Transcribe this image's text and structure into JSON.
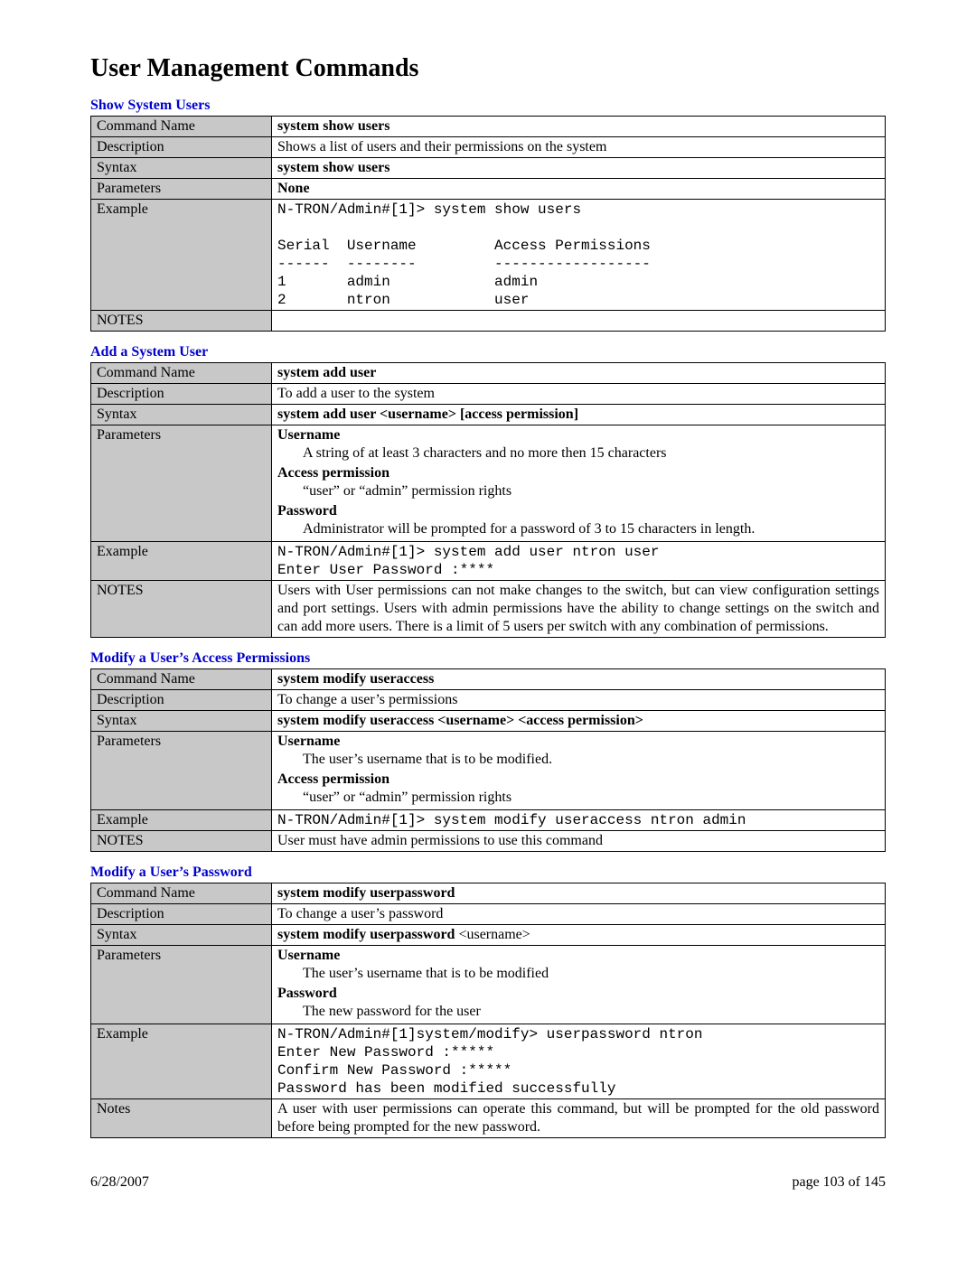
{
  "page_title": "User Management Commands",
  "footer": {
    "date": "6/28/2007",
    "page": "page 103 of 145"
  },
  "labels": {
    "command_name": "Command Name",
    "description": "Description",
    "syntax": "Syntax",
    "parameters": "Parameters",
    "example": "Example",
    "notes_upper": "NOTES",
    "notes": "Notes"
  },
  "sections": {
    "show_users": {
      "title": "Show System Users",
      "command_name": "system show users",
      "description": "Shows a list of users and their permissions on the system",
      "syntax": "system show users",
      "parameters_simple": "None",
      "example": "N-TRON/Admin#[1]> system show users\n\nSerial  Username         Access Permissions\n------  --------         ------------------\n1       admin            admin\n2       ntron            user",
      "notes": ""
    },
    "add_user": {
      "title": "Add a System User",
      "command_name": "system add user",
      "description": "To add a user to the system",
      "syntax": "system add user <username> [access permission]",
      "params": [
        {
          "name": "Username",
          "desc": "A string of at least 3 characters and no more then 15 characters"
        },
        {
          "name": "Access permission",
          "desc": "“user” or “admin” permission rights"
        },
        {
          "name": "Password",
          "desc": "Administrator will be prompted for a password of 3 to 15 characters in length."
        }
      ],
      "example": "N-TRON/Admin#[1]> system add user ntron user\nEnter User Password :****",
      "notes": "Users with User permissions can not make changes to the switch, but can view configuration settings and port settings.  Users with admin permissions have the ability to change settings on the switch and can add more users.  There is a limit of 5 users per switch with any combination of permissions."
    },
    "modify_access": {
      "title": "Modify a User’s Access Permissions",
      "command_name": "system modify useraccess",
      "description": "To change a user’s permissions",
      "syntax": "system modify useraccess <username> <access permission>",
      "params": [
        {
          "name": "Username",
          "desc": "The user’s username that is to be modified."
        },
        {
          "name": "Access permission",
          "desc": "“user” or “admin” permission rights"
        }
      ],
      "example": "N-TRON/Admin#[1]> system modify useraccess ntron admin",
      "notes": "User must have admin permissions to use this command"
    },
    "modify_password": {
      "title": "Modify a User’s Password",
      "command_name": "system modify userpassword",
      "description": "To change a user’s password",
      "syntax_prefix": "system modify userpassword ",
      "syntax_suffix": "<username>",
      "params": [
        {
          "name": "Username",
          "desc": "The user’s username that is to be modified"
        },
        {
          "name": "Password",
          "desc": "The new password for the user"
        }
      ],
      "example": "N-TRON/Admin#[1]system/modify> userpassword ntron\nEnter New Password :*****\nConfirm New Password :*****\nPassword has been modified successfully",
      "notes": "A user with user permissions can operate this command, but will be prompted for the old password before being prompted for the new password."
    }
  }
}
